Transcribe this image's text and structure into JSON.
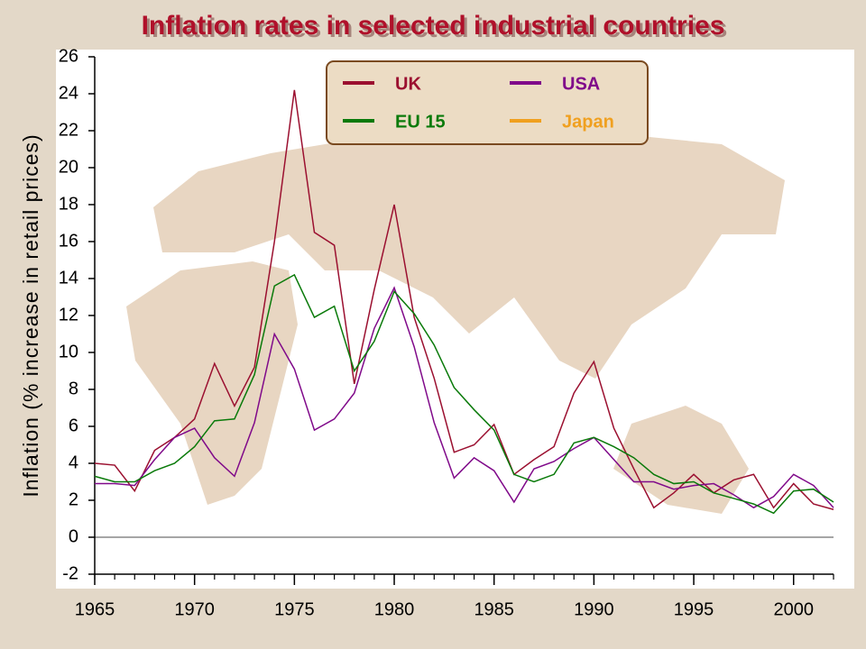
{
  "chart_data": {
    "type": "line",
    "title": "Inflation rates in selected industrial countries",
    "ylabel": "Inflation (% increase in retail prices)",
    "x": [
      1965,
      1966,
      1967,
      1968,
      1969,
      1970,
      1971,
      1972,
      1973,
      1974,
      1975,
      1976,
      1977,
      1978,
      1979,
      1980,
      1981,
      1982,
      1983,
      1984,
      1985,
      1986,
      1987,
      1988,
      1989,
      1990,
      1991,
      1992,
      1993,
      1994,
      1995,
      1996,
      1997,
      1998,
      1999,
      2000,
      2001,
      2002
    ],
    "series": [
      {
        "name": "UK",
        "color": "#9b1030",
        "values": [
          4.0,
          3.9,
          2.5,
          4.7,
          5.4,
          6.4,
          9.4,
          7.1,
          9.2,
          16.0,
          24.2,
          16.5,
          15.8,
          8.3,
          13.4,
          18.0,
          11.9,
          8.6,
          4.6,
          5.0,
          6.1,
          3.4,
          4.2,
          4.9,
          7.8,
          9.5,
          5.9,
          3.7,
          1.6,
          2.4,
          3.4,
          2.4,
          3.1,
          3.4,
          1.6,
          2.9,
          1.8,
          1.5
        ]
      },
      {
        "name": "USA",
        "color": "#800a8a",
        "values": [
          2.9,
          2.9,
          2.8,
          4.2,
          5.4,
          5.9,
          4.3,
          3.3,
          6.2,
          11.0,
          9.1,
          5.8,
          6.4,
          7.8,
          11.3,
          13.5,
          10.3,
          6.2,
          3.2,
          4.3,
          3.6,
          1.9,
          3.7,
          4.1,
          4.8,
          5.4,
          4.2,
          3.0,
          3.0,
          2.6,
          2.8,
          2.9,
          2.3,
          1.6,
          2.2,
          3.4,
          2.8,
          1.6
        ]
      },
      {
        "name": "EU 15",
        "color": "#0a7a0a",
        "values": [
          3.3,
          3.0,
          3.0,
          3.6,
          4.0,
          4.9,
          6.3,
          6.4,
          8.8,
          13.6,
          14.2,
          11.9,
          12.5,
          9.0,
          10.6,
          13.3,
          12.1,
          10.4,
          8.1,
          6.9,
          5.8,
          3.4,
          3.0,
          3.4,
          5.1,
          5.4,
          4.9,
          4.3,
          3.4,
          2.9,
          3.0,
          2.4,
          2.1,
          1.8,
          1.3,
          2.5,
          2.6,
          1.9
        ]
      },
      {
        "name": "Japan",
        "color": "#f0a020",
        "values": [
          null,
          null,
          null,
          null,
          null,
          null,
          null,
          null,
          null,
          null,
          null,
          null,
          null,
          null,
          null,
          null,
          null,
          null,
          null,
          null,
          null,
          null,
          null,
          null,
          null,
          null,
          null,
          null,
          null,
          null,
          null,
          null,
          null,
          null,
          null,
          null,
          null,
          null
        ]
      }
    ],
    "xlim": [
      1965,
      2002
    ],
    "xticks": [
      1965,
      1970,
      1975,
      1980,
      1985,
      1990,
      1995,
      2000
    ],
    "ylim": [
      -2,
      26
    ],
    "yticks": [
      -2,
      0,
      2,
      4,
      6,
      8,
      10,
      12,
      14,
      16,
      18,
      20,
      22,
      24,
      26
    ]
  }
}
